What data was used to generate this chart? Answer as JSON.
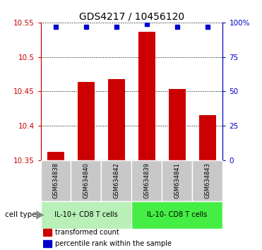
{
  "title": "GDS4217 / 10456120",
  "samples": [
    "GSM634838",
    "GSM634840",
    "GSM634842",
    "GSM634839",
    "GSM634841",
    "GSM634843"
  ],
  "bar_values": [
    10.362,
    10.464,
    10.468,
    10.537,
    10.453,
    10.415
  ],
  "percentile_values": [
    97,
    97,
    97,
    99,
    97,
    97
  ],
  "bar_color": "#cc0000",
  "dot_color": "#0000cc",
  "ylim_left": [
    10.35,
    10.55
  ],
  "ylim_right": [
    0,
    100
  ],
  "yticks_left": [
    10.35,
    10.4,
    10.45,
    10.5,
    10.55
  ],
  "yticks_right": [
    0,
    25,
    50,
    75,
    100
  ],
  "ytick_labels_right": [
    "0",
    "25",
    "50",
    "75",
    "100%"
  ],
  "group_labels": [
    "IL-10+ CD8 T cells",
    "IL-10- CD8 T cells"
  ],
  "group_colors": [
    "#b0eeb0",
    "#44dd44"
  ],
  "group_ranges": [
    [
      0,
      3
    ],
    [
      3,
      6
    ]
  ],
  "cell_type_label": "cell type",
  "legend_entries": [
    "transformed count",
    "percentile rank within the sample"
  ],
  "bar_width": 0.55,
  "bg_color": "#ffffff",
  "tick_area_color": "#c8c8c8"
}
